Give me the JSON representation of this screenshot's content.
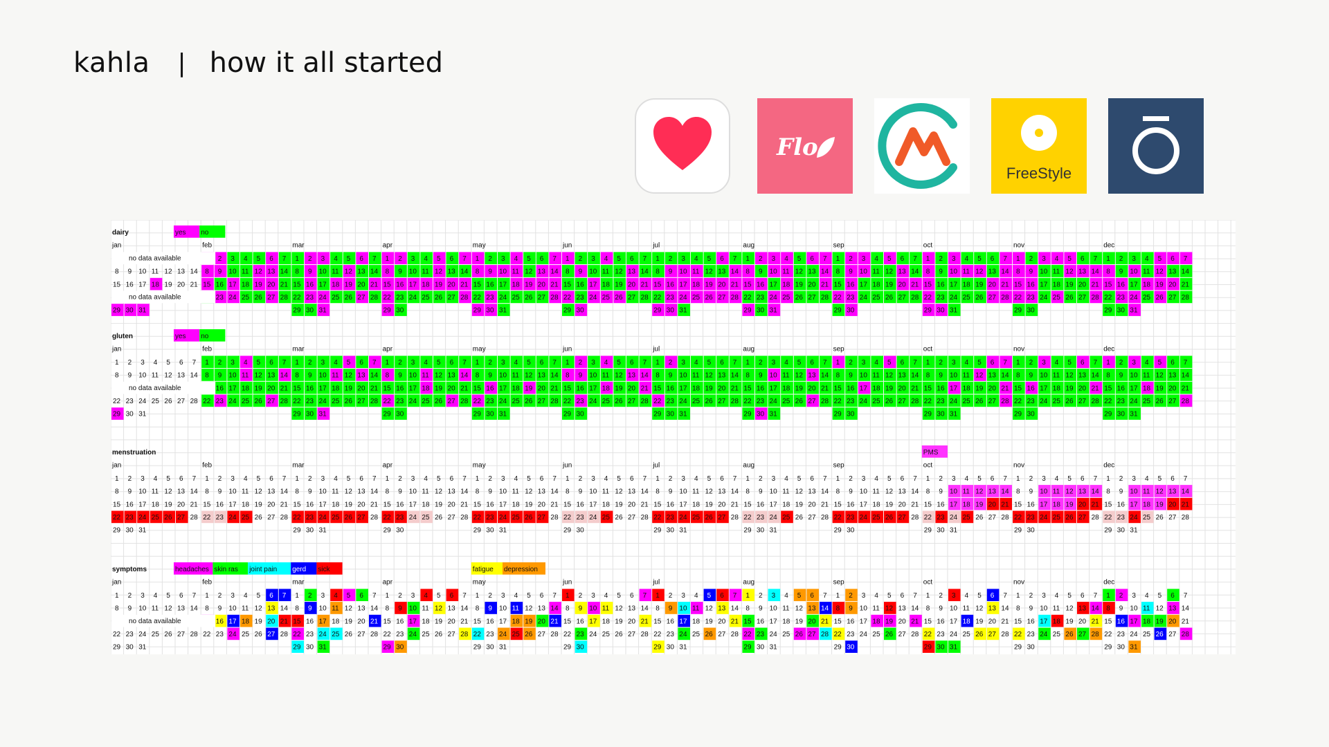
{
  "header": {
    "brand": "kahla",
    "separator": "|",
    "title": "how it all started"
  },
  "apps": [
    {
      "name": "Apple Health",
      "icon": "heart-icon",
      "color": "#ffffff"
    },
    {
      "name": "Flo",
      "icon": "flo-icon",
      "label": "Flo",
      "color": "#f46782"
    },
    {
      "name": "Cara",
      "icon": "cara-icon",
      "color": "#ffffff"
    },
    {
      "name": "FreeStyle",
      "icon": "freestyle-icon",
      "label": "FreeStyle",
      "color": "#ffd200"
    },
    {
      "name": "Oura",
      "icon": "oura-icon",
      "color": "#2e4a6e"
    }
  ],
  "colors": {
    "magenta": "#ff00ff",
    "green": "#00ff00",
    "red": "#ff0000",
    "pale_red": "#f4cccc",
    "cyan": "#00ffff",
    "blue": "#0000ff",
    "yellow": "#ffff00",
    "orange": "#ff9900",
    "pms": "#ff33ff",
    "pale_blue": "#c9daf8"
  },
  "months": [
    "jan",
    "feb",
    "mar",
    "apr",
    "may",
    "jun",
    "jul",
    "aug",
    "sep",
    "oct",
    "nov",
    "dec"
  ],
  "sections": [
    {
      "title": "dairy",
      "legend": [
        {
          "label": "yes",
          "color": "magenta"
        },
        {
          "label": "no",
          "color": "green"
        }
      ],
      "notes": [
        {
          "week": 0,
          "text": "no data available"
        },
        {
          "week": 3,
          "text": "no data available"
        }
      ],
      "jan_marks": [
        {
          "week": 2,
          "col": 3,
          "day": "18",
          "color": "magenta"
        },
        {
          "week": 4,
          "col": 0,
          "day": "29",
          "color": "magenta"
        },
        {
          "week": 4,
          "col": 1,
          "day": "30",
          "color": "magenta"
        },
        {
          "week": 4,
          "col": 2,
          "day": "31",
          "color": "magenta"
        }
      ],
      "default": "magenta",
      "mix": 0.45
    },
    {
      "title": "gluten",
      "legend": [
        {
          "label": "yes",
          "color": "magenta"
        },
        {
          "label": "no",
          "color": "green"
        }
      ],
      "notes": [
        {
          "week": 2,
          "text": "no data available"
        }
      ],
      "jan_marks": [
        {
          "week": 4,
          "col": 0,
          "day": "29",
          "color": "magenta"
        }
      ],
      "default": "green",
      "mix": 0.12
    },
    {
      "title": "menstruation",
      "legend": [
        {
          "label": "PMS",
          "color": "pms",
          "month": "oct"
        }
      ],
      "notes": [],
      "jan_marks": [],
      "default": "none",
      "mix": 0.0
    },
    {
      "title": "symptoms",
      "legend": [
        {
          "label": "headaches",
          "color": "magenta"
        },
        {
          "label": "skin ras",
          "color": "green"
        },
        {
          "label": "joint pain",
          "color": "cyan"
        },
        {
          "label": "gerd",
          "color": "blue"
        },
        {
          "label": "sick",
          "color": "red"
        },
        {
          "label": "fatigue",
          "color": "yellow",
          "month": "may"
        },
        {
          "label": "depression",
          "color": "orange"
        }
      ],
      "notes": [
        {
          "week": 2,
          "text": "no data available"
        }
      ],
      "jan_marks": [],
      "default": "none",
      "mix": 0.35
    }
  ]
}
